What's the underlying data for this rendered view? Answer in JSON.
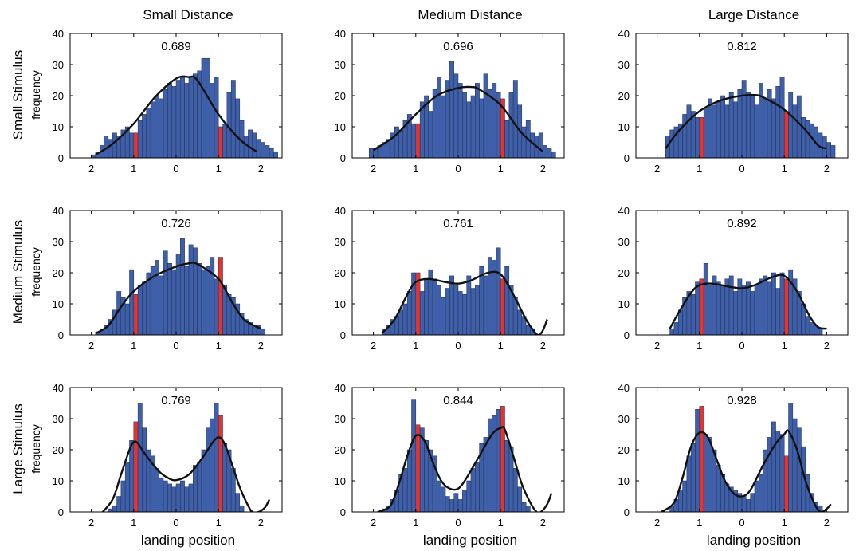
{
  "figure": {
    "col_titles": [
      "Small Distance",
      "Medium Distance",
      "Large Distance"
    ],
    "row_titles": [
      "Small Stimulus",
      "Medium Stimulus",
      "Large Stimulus"
    ],
    "row_ylabel": "frequency",
    "xlabel": "landing position",
    "x_tick_labels": [
      "2",
      "1",
      "0",
      "1",
      "2"
    ],
    "y_tick_labels": [
      "0",
      "10",
      "20",
      "30",
      "40"
    ],
    "colors": {
      "bar": "#3f5fa8",
      "highlight": "#e8322d",
      "curve": "#111111"
    }
  },
  "chart_data": [
    {
      "type": "bar",
      "row": "Small Stimulus",
      "col": "Small Distance",
      "annotation": "0.689",
      "xlim": [
        -2.5,
        2.5
      ],
      "ylim": [
        0,
        40
      ],
      "x_ticks": [
        -2,
        -1,
        0,
        1,
        2
      ],
      "y_ticks": [
        0,
        10,
        20,
        30,
        40
      ],
      "bin_start": -2.0,
      "bin_width": 0.1,
      "highlight_bins": [
        10,
        30
      ],
      "values": [
        1,
        2,
        4,
        7,
        6,
        8,
        7,
        9,
        10,
        8,
        8,
        12,
        14,
        16,
        18,
        20,
        19,
        22,
        24,
        23,
        25,
        26,
        24,
        26,
        27,
        28,
        32,
        32,
        24,
        26,
        10,
        11,
        21,
        25,
        19,
        12,
        7,
        9,
        8,
        6,
        5,
        4,
        3,
        2
      ],
      "curve": [
        [
          -1.9,
          1
        ],
        [
          -1.5,
          4.5
        ],
        [
          -1.0,
          11
        ],
        [
          -0.5,
          19.5
        ],
        [
          0.0,
          25.5
        ],
        [
          0.3,
          26
        ],
        [
          0.5,
          25
        ],
        [
          1.0,
          14
        ],
        [
          1.5,
          6
        ],
        [
          1.9,
          2
        ]
      ]
    },
    {
      "type": "bar",
      "row": "Small Stimulus",
      "col": "Medium Distance",
      "annotation": "0.696",
      "xlim": [
        -2.5,
        2.5
      ],
      "ylim": [
        0,
        40
      ],
      "x_ticks": [
        -2,
        -1,
        0,
        1,
        2
      ],
      "y_ticks": [
        0,
        10,
        20,
        30,
        40
      ],
      "bin_start": -2.1,
      "bin_width": 0.1,
      "highlight_bins": [
        11,
        31
      ],
      "values": [
        3,
        3,
        4,
        5,
        6,
        8,
        10,
        9,
        12,
        14,
        11,
        11,
        18,
        20,
        15,
        22,
        26,
        20,
        25,
        31,
        27,
        24,
        21,
        18,
        20,
        24,
        19,
        27,
        22,
        24,
        21,
        19,
        12,
        21,
        25,
        17,
        10,
        12,
        8,
        7,
        8,
        4,
        3,
        2
      ],
      "curve": [
        [
          -2.0,
          2.5
        ],
        [
          -1.5,
          7
        ],
        [
          -1.0,
          14
        ],
        [
          -0.5,
          20
        ],
        [
          0.0,
          22.5
        ],
        [
          0.3,
          22.8
        ],
        [
          0.5,
          22
        ],
        [
          1.0,
          17
        ],
        [
          1.5,
          8
        ],
        [
          2.0,
          2
        ]
      ]
    },
    {
      "type": "bar",
      "row": "Small Stimulus",
      "col": "Large Distance",
      "annotation": "0.812",
      "xlim": [
        -2.5,
        2.5
      ],
      "ylim": [
        0,
        40
      ],
      "x_ticks": [
        -2,
        -1,
        0,
        1,
        2
      ],
      "y_ticks": [
        0,
        10,
        20,
        30,
        40
      ],
      "bin_start": -1.8,
      "bin_width": 0.1,
      "highlight_bins": [
        8,
        28
      ],
      "values": [
        7,
        9,
        10,
        11,
        14,
        17,
        15,
        13,
        13,
        16,
        19,
        17,
        18,
        20,
        17,
        21,
        18,
        22,
        25,
        21,
        20,
        17,
        24,
        19,
        22,
        19,
        23,
        26,
        15,
        21,
        17,
        20,
        13,
        12,
        11,
        10,
        8,
        7,
        5,
        4
      ],
      "curve": [
        [
          -1.8,
          3
        ],
        [
          -1.5,
          8.5
        ],
        [
          -1.0,
          15
        ],
        [
          -0.5,
          18.5
        ],
        [
          0.0,
          20
        ],
        [
          0.3,
          20.2
        ],
        [
          0.5,
          19.5
        ],
        [
          1.0,
          15.5
        ],
        [
          1.5,
          9
        ],
        [
          1.8,
          4
        ],
        [
          2.0,
          3
        ]
      ]
    },
    {
      "type": "bar",
      "row": "Medium Stimulus",
      "col": "Small Distance",
      "annotation": "0.726",
      "xlim": [
        -2.5,
        2.5
      ],
      "ylim": [
        0,
        40
      ],
      "x_ticks": [
        -2,
        -1,
        0,
        1,
        2
      ],
      "y_ticks": [
        0,
        10,
        20,
        30,
        40
      ],
      "bin_start": -1.9,
      "bin_width": 0.1,
      "highlight_bins": [
        9,
        29
      ],
      "values": [
        1,
        2,
        3,
        5,
        8,
        14,
        12,
        10,
        21,
        13,
        16,
        17,
        20,
        22,
        24,
        19,
        27,
        23,
        21,
        26,
        31,
        22,
        29,
        28,
        23,
        21,
        22,
        25,
        18,
        25,
        16,
        13,
        12,
        10,
        7,
        5,
        4,
        3,
        3,
        2
      ],
      "curve": [
        [
          -1.9,
          0.5
        ],
        [
          -1.6,
          3
        ],
        [
          -1.3,
          9
        ],
        [
          -1.0,
          14
        ],
        [
          -0.5,
          19
        ],
        [
          0.0,
          22
        ],
        [
          0.3,
          23
        ],
        [
          0.5,
          22.8
        ],
        [
          1.0,
          18
        ],
        [
          1.3,
          11
        ],
        [
          1.6,
          5
        ],
        [
          2.0,
          2
        ]
      ]
    },
    {
      "type": "bar",
      "row": "Medium Stimulus",
      "col": "Medium Distance",
      "annotation": "0.761",
      "xlim": [
        -2.5,
        2.5
      ],
      "ylim": [
        0,
        40
      ],
      "x_ticks": [
        -2,
        -1,
        0,
        1,
        2
      ],
      "y_ticks": [
        0,
        10,
        20,
        30,
        40
      ],
      "bin_start": -1.8,
      "bin_width": 0.1,
      "highlight_bins": [
        8,
        28
      ],
      "values": [
        2,
        3,
        5,
        6,
        8,
        10,
        14,
        20,
        20,
        14,
        18,
        21,
        18,
        16,
        12,
        15,
        19,
        16,
        14,
        13,
        19,
        15,
        16,
        22,
        19,
        25,
        24,
        28,
        18,
        22,
        16,
        12,
        8,
        6,
        3,
        2
      ],
      "curve": [
        [
          -1.8,
          0.5
        ],
        [
          -1.5,
          5
        ],
        [
          -1.2,
          13
        ],
        [
          -1.0,
          17
        ],
        [
          -0.7,
          18
        ],
        [
          -0.3,
          17
        ],
        [
          0.0,
          16.5
        ],
        [
          0.3,
          17.5
        ],
        [
          0.7,
          20
        ],
        [
          1.0,
          19.5
        ],
        [
          1.3,
          13
        ],
        [
          1.6,
          5
        ],
        [
          1.8,
          1
        ],
        [
          1.9,
          0
        ],
        [
          2.0,
          1.5
        ],
        [
          2.1,
          5
        ]
      ]
    },
    {
      "type": "bar",
      "row": "Medium Stimulus",
      "col": "Large Distance",
      "annotation": "0.892",
      "xlim": [
        -2.5,
        2.5
      ],
      "ylim": [
        0,
        40
      ],
      "x_ticks": [
        -2,
        -1,
        0,
        1,
        2
      ],
      "y_ticks": [
        0,
        10,
        20,
        30,
        40
      ],
      "bin_start": -1.7,
      "bin_width": 0.1,
      "highlight_bins": [
        7,
        27
      ],
      "values": [
        2,
        4,
        8,
        12,
        14,
        13,
        17,
        18,
        23,
        16,
        19,
        17,
        16,
        18,
        19,
        14,
        18,
        16,
        17,
        14,
        16,
        18,
        19,
        17,
        20,
        15,
        20,
        18,
        21,
        18,
        14,
        10,
        6,
        4,
        3,
        2
      ],
      "curve": [
        [
          -1.7,
          2
        ],
        [
          -1.5,
          7
        ],
        [
          -1.2,
          13.5
        ],
        [
          -1.0,
          16
        ],
        [
          -0.7,
          16.5
        ],
        [
          -0.3,
          15.5
        ],
        [
          0.0,
          15
        ],
        [
          0.3,
          16
        ],
        [
          0.7,
          18.5
        ],
        [
          1.0,
          19
        ],
        [
          1.3,
          14
        ],
        [
          1.6,
          6
        ],
        [
          1.8,
          2.5
        ],
        [
          2.0,
          2
        ]
      ]
    },
    {
      "type": "bar",
      "row": "Large Stimulus",
      "col": "Small Distance",
      "annotation": "0.769",
      "xlim": [
        -2.5,
        2.5
      ],
      "ylim": [
        0,
        40
      ],
      "x_ticks": [
        -2,
        -1,
        0,
        1,
        2
      ],
      "y_ticks": [
        0,
        10,
        20,
        30,
        40
      ],
      "bin_start": -1.6,
      "bin_width": 0.1,
      "highlight_bins": [
        6,
        26
      ],
      "values": [
        1,
        2,
        5,
        10,
        16,
        23,
        29,
        35,
        27,
        20,
        18,
        14,
        11,
        10,
        9,
        8,
        9,
        10,
        8,
        9,
        15,
        16,
        20,
        27,
        30,
        35,
        31,
        22,
        20,
        14,
        6,
        2
      ],
      "curve": [
        [
          -1.8,
          -1
        ],
        [
          -1.5,
          4
        ],
        [
          -1.3,
          12
        ],
        [
          -1.1,
          20
        ],
        [
          -1.0,
          22.5
        ],
        [
          -0.9,
          22
        ],
        [
          -0.7,
          18
        ],
        [
          -0.4,
          13
        ],
        [
          -0.2,
          11
        ],
        [
          0.0,
          10.2
        ],
        [
          0.3,
          12
        ],
        [
          0.6,
          17
        ],
        [
          0.9,
          23
        ],
        [
          1.05,
          23.8
        ],
        [
          1.2,
          20
        ],
        [
          1.5,
          8
        ],
        [
          1.7,
          2
        ],
        [
          1.8,
          0
        ],
        [
          1.95,
          0
        ],
        [
          2.1,
          1.5
        ],
        [
          2.2,
          4
        ]
      ]
    },
    {
      "type": "bar",
      "row": "Large Stimulus",
      "col": "Medium Distance",
      "annotation": "0.844",
      "xlim": [
        -2.5,
        2.5
      ],
      "ylim": [
        0,
        40
      ],
      "x_ticks": [
        -2,
        -1,
        0,
        1,
        2
      ],
      "y_ticks": [
        0,
        10,
        20,
        30,
        40
      ],
      "bin_start": -1.8,
      "bin_width": 0.1,
      "highlight_bins": [
        8,
        28
      ],
      "values": [
        1,
        2,
        4,
        7,
        12,
        14,
        20,
        36,
        28,
        27,
        23,
        20,
        18,
        10,
        8,
        5,
        4,
        6,
        4,
        7,
        10,
        14,
        16,
        22,
        24,
        30,
        31,
        33,
        34,
        23,
        21,
        14,
        8,
        3,
        2
      ],
      "curve": [
        [
          -1.9,
          0
        ],
        [
          -1.6,
          2
        ],
        [
          -1.4,
          9
        ],
        [
          -1.2,
          18
        ],
        [
          -1.0,
          24.5
        ],
        [
          -0.8,
          23
        ],
        [
          -0.6,
          16
        ],
        [
          -0.4,
          10
        ],
        [
          -0.2,
          7.5
        ],
        [
          0.0,
          7.5
        ],
        [
          0.2,
          11
        ],
        [
          0.5,
          18
        ],
        [
          0.8,
          25
        ],
        [
          1.0,
          27
        ],
        [
          1.1,
          26.5
        ],
        [
          1.3,
          18
        ],
        [
          1.5,
          9
        ],
        [
          1.7,
          3
        ],
        [
          1.85,
          0
        ],
        [
          1.95,
          0
        ],
        [
          2.1,
          2.5
        ],
        [
          2.2,
          6
        ]
      ]
    },
    {
      "type": "bar",
      "row": "Large Stimulus",
      "col": "Large Distance",
      "annotation": "0.928",
      "xlim": [
        -2.5,
        2.5
      ],
      "ylim": [
        0,
        40
      ],
      "x_ticks": [
        -2,
        -1,
        0,
        1,
        2
      ],
      "y_ticks": [
        0,
        10,
        20,
        30,
        40
      ],
      "bin_start": -1.7,
      "bin_width": 0.1,
      "highlight_bins": [
        7,
        27
      ],
      "values": [
        2,
        4,
        7,
        10,
        18,
        22,
        33,
        34,
        25,
        24,
        20,
        15,
        12,
        9,
        8,
        7,
        6,
        5,
        4,
        6,
        10,
        12,
        20,
        24,
        29,
        26,
        25,
        18,
        35,
        30,
        27,
        21,
        12,
        6,
        3,
        2
      ],
      "curve": [
        [
          -1.9,
          0
        ],
        [
          -1.6,
          3
        ],
        [
          -1.4,
          11
        ],
        [
          -1.2,
          21
        ],
        [
          -1.0,
          25.5
        ],
        [
          -0.8,
          24
        ],
        [
          -0.6,
          17
        ],
        [
          -0.4,
          10
        ],
        [
          -0.2,
          6
        ],
        [
          0.0,
          5
        ],
        [
          0.2,
          7
        ],
        [
          0.5,
          15
        ],
        [
          0.8,
          22
        ],
        [
          1.0,
          25
        ],
        [
          1.1,
          26
        ],
        [
          1.3,
          20
        ],
        [
          1.5,
          10
        ],
        [
          1.7,
          3
        ],
        [
          1.85,
          0
        ],
        [
          2.0,
          1
        ],
        [
          2.1,
          2.5
        ]
      ]
    }
  ]
}
